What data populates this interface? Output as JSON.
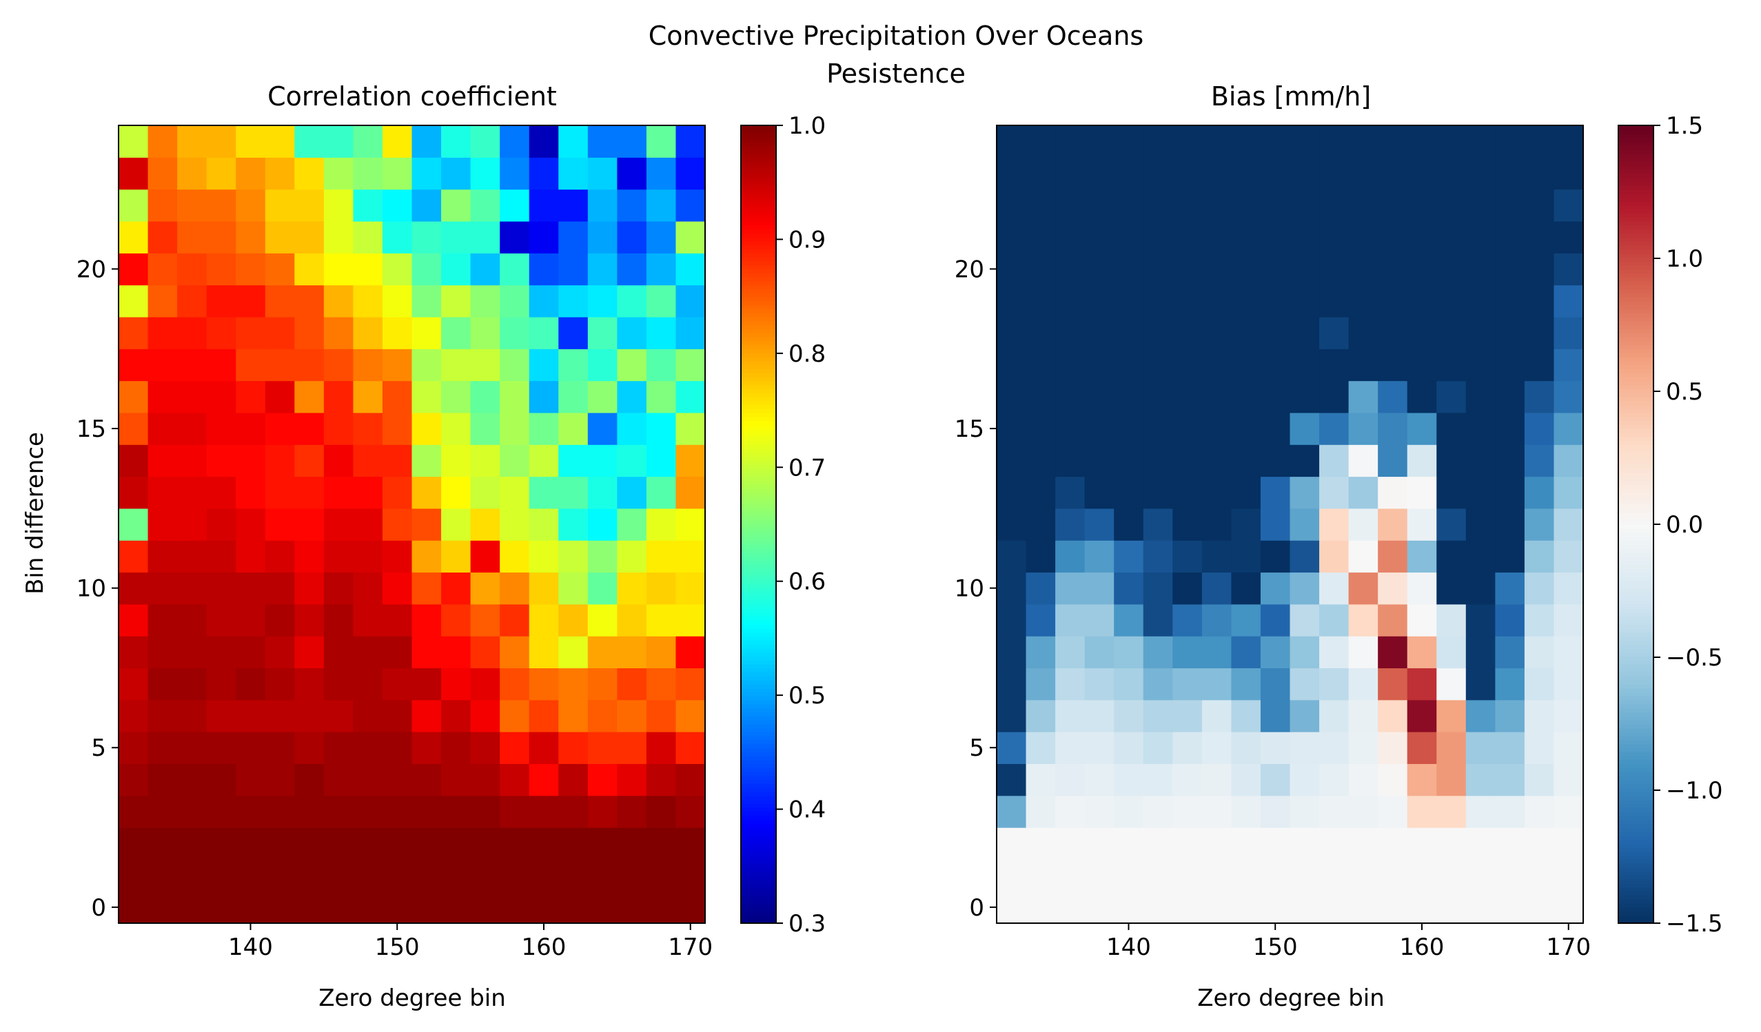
{
  "figure": {
    "suptitle_line1": "Convective Precipitation Over Oceans",
    "suptitle_line2": "Pesistence"
  },
  "chart_data": [
    {
      "type": "heatmap",
      "title": "Correlation coefficient",
      "xlabel": "Zero degree bin",
      "ylabel": "Bin difference",
      "colormap": "jet",
      "colorbar": {
        "min": 0.3,
        "max": 1.0,
        "ticks": [
          "0.3",
          "0.4",
          "0.5",
          "0.6",
          "0.7",
          "0.8",
          "0.9",
          "1.0"
        ]
      },
      "x_ticks": [
        "140",
        "150",
        "160",
        "170"
      ],
      "y_ticks": [
        "0",
        "5",
        "10",
        "15",
        "20"
      ],
      "x_range": [
        131,
        171
      ],
      "y_range": [
        -0.5,
        24.5
      ],
      "x_centers": [
        132,
        134,
        136,
        138,
        140,
        142,
        144,
        146,
        148,
        150,
        152,
        154,
        156,
        158,
        160,
        162,
        164,
        166,
        168,
        170
      ],
      "y_centers": [
        0,
        1,
        2,
        3,
        4,
        5,
        6,
        7,
        8,
        9,
        10,
        11,
        12,
        13,
        14,
        15,
        16,
        17,
        18,
        19,
        20,
        21,
        22,
        23,
        24
      ],
      "grid": false,
      "values": [
        [
          1.0,
          1.0,
          1.0,
          1.0,
          1.0,
          1.0,
          1.0,
          1.0,
          1.0,
          1.0,
          1.0,
          1.0,
          1.0,
          1.0,
          1.0,
          1.0,
          1.0,
          1.0,
          1.0,
          1.0
        ],
        [
          1.0,
          1.0,
          1.0,
          1.0,
          1.0,
          1.0,
          1.0,
          1.0,
          1.0,
          1.0,
          1.0,
          1.0,
          1.0,
          1.0,
          1.0,
          1.0,
          1.0,
          1.0,
          1.0,
          1.0
        ],
        [
          1.0,
          1.0,
          1.0,
          1.0,
          1.0,
          1.0,
          1.0,
          1.0,
          1.0,
          1.0,
          1.0,
          1.0,
          1.0,
          1.0,
          1.0,
          1.0,
          1.0,
          1.0,
          1.0,
          1.0
        ],
        [
          0.99,
          0.99,
          0.99,
          0.99,
          0.99,
          0.99,
          0.99,
          0.99,
          0.99,
          0.99,
          0.99,
          0.99,
          0.99,
          0.98,
          0.98,
          0.98,
          0.97,
          0.98,
          0.99,
          0.98
        ],
        [
          0.98,
          0.99,
          0.99,
          0.99,
          0.98,
          0.98,
          0.99,
          0.98,
          0.98,
          0.98,
          0.98,
          0.97,
          0.97,
          0.95,
          0.91,
          0.96,
          0.91,
          0.93,
          0.96,
          0.97
        ],
        [
          0.97,
          0.98,
          0.98,
          0.98,
          0.98,
          0.98,
          0.97,
          0.98,
          0.98,
          0.98,
          0.96,
          0.97,
          0.96,
          0.9,
          0.94,
          0.89,
          0.88,
          0.88,
          0.94,
          0.89
        ],
        [
          0.96,
          0.97,
          0.97,
          0.96,
          0.96,
          0.96,
          0.96,
          0.96,
          0.97,
          0.97,
          0.92,
          0.95,
          0.92,
          0.84,
          0.87,
          0.83,
          0.85,
          0.84,
          0.86,
          0.83
        ],
        [
          0.95,
          0.98,
          0.98,
          0.97,
          0.98,
          0.97,
          0.96,
          0.97,
          0.97,
          0.96,
          0.96,
          0.92,
          0.93,
          0.86,
          0.84,
          0.83,
          0.84,
          0.87,
          0.85,
          0.86
        ],
        [
          0.96,
          0.97,
          0.97,
          0.97,
          0.97,
          0.96,
          0.93,
          0.97,
          0.97,
          0.97,
          0.91,
          0.91,
          0.88,
          0.83,
          0.76,
          0.72,
          0.8,
          0.8,
          0.81,
          0.91
        ],
        [
          0.92,
          0.97,
          0.97,
          0.96,
          0.96,
          0.97,
          0.95,
          0.97,
          0.95,
          0.95,
          0.91,
          0.88,
          0.85,
          0.88,
          0.76,
          0.78,
          0.73,
          0.77,
          0.75,
          0.75
        ],
        [
          0.96,
          0.96,
          0.96,
          0.96,
          0.96,
          0.96,
          0.93,
          0.96,
          0.95,
          0.92,
          0.86,
          0.9,
          0.8,
          0.82,
          0.77,
          0.69,
          0.63,
          0.76,
          0.77,
          0.76
        ],
        [
          0.89,
          0.95,
          0.95,
          0.95,
          0.93,
          0.94,
          0.92,
          0.94,
          0.94,
          0.93,
          0.8,
          0.77,
          0.92,
          0.75,
          0.72,
          0.7,
          0.66,
          0.71,
          0.75,
          0.75
        ],
        [
          0.64,
          0.93,
          0.93,
          0.94,
          0.93,
          0.91,
          0.91,
          0.93,
          0.93,
          0.87,
          0.86,
          0.71,
          0.76,
          0.71,
          0.7,
          0.58,
          0.56,
          0.64,
          0.72,
          0.73
        ],
        [
          0.95,
          0.93,
          0.93,
          0.93,
          0.91,
          0.9,
          0.9,
          0.91,
          0.91,
          0.88,
          0.78,
          0.74,
          0.7,
          0.71,
          0.62,
          0.62,
          0.58,
          0.53,
          0.62,
          0.81
        ],
        [
          0.96,
          0.92,
          0.92,
          0.91,
          0.91,
          0.9,
          0.88,
          0.92,
          0.89,
          0.89,
          0.68,
          0.72,
          0.71,
          0.67,
          0.7,
          0.57,
          0.57,
          0.58,
          0.56,
          0.8
        ],
        [
          0.86,
          0.93,
          0.93,
          0.92,
          0.92,
          0.91,
          0.91,
          0.89,
          0.88,
          0.86,
          0.75,
          0.71,
          0.64,
          0.68,
          0.64,
          0.68,
          0.47,
          0.55,
          0.56,
          0.69
        ],
        [
          0.84,
          0.92,
          0.92,
          0.92,
          0.9,
          0.93,
          0.82,
          0.89,
          0.8,
          0.86,
          0.7,
          0.67,
          0.63,
          0.68,
          0.51,
          0.63,
          0.66,
          0.53,
          0.65,
          0.58
        ],
        [
          0.91,
          0.91,
          0.91,
          0.91,
          0.87,
          0.87,
          0.87,
          0.86,
          0.83,
          0.82,
          0.68,
          0.7,
          0.7,
          0.66,
          0.54,
          0.62,
          0.59,
          0.67,
          0.62,
          0.66
        ],
        [
          0.87,
          0.9,
          0.9,
          0.89,
          0.88,
          0.88,
          0.86,
          0.83,
          0.78,
          0.75,
          0.73,
          0.64,
          0.67,
          0.62,
          0.61,
          0.42,
          0.61,
          0.53,
          0.55,
          0.52
        ],
        [
          0.72,
          0.85,
          0.88,
          0.9,
          0.9,
          0.86,
          0.86,
          0.79,
          0.76,
          0.73,
          0.65,
          0.7,
          0.66,
          0.63,
          0.52,
          0.54,
          0.55,
          0.59,
          0.62,
          0.51
        ],
        [
          0.91,
          0.86,
          0.87,
          0.86,
          0.85,
          0.84,
          0.76,
          0.74,
          0.74,
          0.7,
          0.62,
          0.58,
          0.52,
          0.6,
          0.44,
          0.45,
          0.52,
          0.46,
          0.51,
          0.55
        ],
        [
          0.75,
          0.88,
          0.85,
          0.85,
          0.83,
          0.78,
          0.78,
          0.72,
          0.7,
          0.58,
          0.6,
          0.59,
          0.59,
          0.36,
          0.38,
          0.45,
          0.5,
          0.43,
          0.48,
          0.68
        ],
        [
          0.69,
          0.85,
          0.84,
          0.84,
          0.82,
          0.77,
          0.77,
          0.72,
          0.58,
          0.56,
          0.51,
          0.66,
          0.62,
          0.56,
          0.4,
          0.4,
          0.51,
          0.46,
          0.51,
          0.44
        ],
        [
          0.94,
          0.84,
          0.8,
          0.78,
          0.81,
          0.79,
          0.76,
          0.68,
          0.66,
          0.67,
          0.54,
          0.52,
          0.57,
          0.48,
          0.41,
          0.54,
          0.53,
          0.37,
          0.48,
          0.4
        ],
        [
          0.7,
          0.83,
          0.79,
          0.79,
          0.76,
          0.76,
          0.6,
          0.6,
          0.63,
          0.75,
          0.51,
          0.58,
          0.6,
          0.47,
          0.34,
          0.55,
          0.47,
          0.47,
          0.63,
          0.42
        ]
      ]
    },
    {
      "type": "heatmap",
      "title": "Bias [mm/h]",
      "xlabel": "Zero degree bin",
      "ylabel": "",
      "colormap": "RdBu_r",
      "colorbar": {
        "min": -1.5,
        "max": 1.5,
        "ticks": [
          "−1.5",
          "−1.0",
          "−0.5",
          "0.0",
          "0.5",
          "1.0",
          "1.5"
        ]
      },
      "x_ticks": [
        "140",
        "150",
        "160",
        "170"
      ],
      "y_ticks": [
        "0",
        "5",
        "10",
        "15",
        "20"
      ],
      "x_range": [
        131,
        171
      ],
      "y_range": [
        -0.5,
        24.5
      ],
      "x_centers": [
        132,
        134,
        136,
        138,
        140,
        142,
        144,
        146,
        148,
        150,
        152,
        154,
        156,
        158,
        160,
        162,
        164,
        166,
        168,
        170
      ],
      "y_centers": [
        0,
        1,
        2,
        3,
        4,
        5,
        6,
        7,
        8,
        9,
        10,
        11,
        12,
        13,
        14,
        15,
        16,
        17,
        18,
        19,
        20,
        21,
        22,
        23,
        24
      ],
      "grid": false,
      "values": [
        [
          0.0,
          0.0,
          0.0,
          0.0,
          0.0,
          0.0,
          0.0,
          0.0,
          0.0,
          0.0,
          0.0,
          0.0,
          0.0,
          0.0,
          0.0,
          0.0,
          0.0,
          0.0,
          0.0,
          0.0
        ],
        [
          0.0,
          0.0,
          0.0,
          0.0,
          0.0,
          0.0,
          0.0,
          0.0,
          0.0,
          0.0,
          0.0,
          0.0,
          0.0,
          0.0,
          0.0,
          0.0,
          0.0,
          0.0,
          0.0,
          0.0
        ],
        [
          0.0,
          0.0,
          0.0,
          0.0,
          0.0,
          0.0,
          0.0,
          0.0,
          0.0,
          0.0,
          0.0,
          0.0,
          0.0,
          0.0,
          0.0,
          0.0,
          0.0,
          0.0,
          0.0,
          0.0
        ],
        [
          -0.75,
          -0.12,
          -0.06,
          -0.08,
          -0.1,
          -0.08,
          -0.06,
          -0.06,
          -0.1,
          -0.16,
          -0.1,
          -0.08,
          -0.08,
          -0.05,
          0.3,
          0.3,
          -0.14,
          -0.14,
          -0.06,
          -0.04
        ],
        [
          -1.45,
          -0.14,
          -0.16,
          -0.14,
          -0.18,
          -0.18,
          -0.14,
          -0.12,
          -0.22,
          -0.4,
          -0.18,
          -0.14,
          -0.06,
          0.02,
          0.55,
          0.65,
          -0.5,
          -0.5,
          -0.25,
          -0.1
        ],
        [
          -1.15,
          -0.35,
          -0.2,
          -0.2,
          -0.28,
          -0.35,
          -0.25,
          -0.18,
          -0.28,
          -0.22,
          -0.2,
          -0.2,
          -0.1,
          0.1,
          0.95,
          0.65,
          -0.55,
          -0.55,
          -0.2,
          -0.1
        ],
        [
          -1.45,
          -0.55,
          -0.3,
          -0.3,
          -0.38,
          -0.45,
          -0.45,
          -0.25,
          -0.45,
          -1.0,
          -0.7,
          -0.25,
          -0.12,
          0.3,
          1.35,
          0.6,
          -0.85,
          -0.75,
          -0.2,
          -0.15
        ],
        [
          -1.45,
          -0.75,
          -0.4,
          -0.45,
          -0.5,
          -0.7,
          -0.65,
          -0.65,
          -0.8,
          -1.0,
          -0.45,
          -0.4,
          -0.18,
          0.9,
          1.1,
          -0.02,
          -1.45,
          -0.9,
          -0.3,
          -0.18
        ],
        [
          -1.45,
          -0.8,
          -0.5,
          -0.62,
          -0.6,
          -0.8,
          -0.9,
          -0.9,
          -1.15,
          -0.85,
          -0.6,
          -0.2,
          -0.02,
          1.4,
          0.55,
          -0.3,
          -1.45,
          -1.05,
          -0.25,
          -0.18
        ],
        [
          -1.45,
          -1.2,
          -0.55,
          -0.55,
          -0.88,
          -1.35,
          -1.15,
          -1.0,
          -0.9,
          -1.2,
          -0.4,
          -0.5,
          0.3,
          0.7,
          0.0,
          -0.28,
          -1.45,
          -1.2,
          -0.35,
          -0.22
        ],
        [
          -1.45,
          -1.25,
          -0.7,
          -0.7,
          -1.25,
          -1.35,
          -1.5,
          -1.3,
          -1.5,
          -0.85,
          -0.7,
          -0.2,
          0.75,
          0.2,
          -0.05,
          -1.5,
          -1.5,
          -1.1,
          -0.45,
          -0.3
        ],
        [
          -1.45,
          -1.5,
          -0.95,
          -0.85,
          -1.15,
          -1.3,
          -1.4,
          -1.45,
          -1.45,
          -1.5,
          -1.3,
          0.35,
          0.0,
          0.75,
          -0.65,
          -1.5,
          -1.5,
          -1.5,
          -0.6,
          -0.4
        ],
        [
          -1.5,
          -1.5,
          -1.3,
          -1.25,
          -1.5,
          -1.35,
          -1.5,
          -1.5,
          -1.45,
          -1.2,
          -0.8,
          0.3,
          -0.12,
          0.45,
          -0.1,
          -1.35,
          -1.5,
          -1.5,
          -0.8,
          -0.45
        ],
        [
          -1.5,
          -1.5,
          -1.4,
          -1.5,
          -1.5,
          -1.5,
          -1.5,
          -1.5,
          -1.5,
          -1.2,
          -0.75,
          -0.4,
          -0.55,
          0.02,
          0.0,
          -1.5,
          -1.5,
          -1.5,
          -0.95,
          -0.6
        ],
        [
          -1.5,
          -1.5,
          -1.5,
          -1.5,
          -1.5,
          -1.5,
          -1.5,
          -1.5,
          -1.5,
          -1.5,
          -1.5,
          -0.45,
          -0.02,
          -1.0,
          -0.25,
          -1.5,
          -1.5,
          -1.5,
          -1.15,
          -0.65
        ],
        [
          -1.5,
          -1.5,
          -1.5,
          -1.5,
          -1.5,
          -1.5,
          -1.5,
          -1.5,
          -1.5,
          -1.5,
          -0.95,
          -1.1,
          -0.85,
          -1.0,
          -0.9,
          -1.5,
          -1.5,
          -1.5,
          -1.2,
          -0.85
        ],
        [
          -1.5,
          -1.5,
          -1.5,
          -1.5,
          -1.5,
          -1.5,
          -1.5,
          -1.5,
          -1.5,
          -1.5,
          -1.5,
          -1.5,
          -0.8,
          -1.15,
          -1.5,
          -1.4,
          -1.5,
          -1.5,
          -1.3,
          -1.1
        ],
        [
          -1.5,
          -1.5,
          -1.5,
          -1.5,
          -1.5,
          -1.5,
          -1.5,
          -1.5,
          -1.5,
          -1.5,
          -1.5,
          -1.5,
          -1.5,
          -1.5,
          -1.5,
          -1.5,
          -1.5,
          -1.5,
          -1.5,
          -1.15
        ],
        [
          -1.5,
          -1.5,
          -1.5,
          -1.5,
          -1.5,
          -1.5,
          -1.5,
          -1.5,
          -1.5,
          -1.5,
          -1.5,
          -1.4,
          -1.5,
          -1.5,
          -1.5,
          -1.5,
          -1.5,
          -1.5,
          -1.5,
          -1.25
        ],
        [
          -1.5,
          -1.5,
          -1.5,
          -1.5,
          -1.5,
          -1.5,
          -1.5,
          -1.5,
          -1.5,
          -1.5,
          -1.5,
          -1.5,
          -1.5,
          -1.5,
          -1.5,
          -1.5,
          -1.5,
          -1.5,
          -1.5,
          -1.2
        ],
        [
          -1.5,
          -1.5,
          -1.5,
          -1.5,
          -1.5,
          -1.5,
          -1.5,
          -1.5,
          -1.5,
          -1.5,
          -1.5,
          -1.5,
          -1.5,
          -1.5,
          -1.5,
          -1.5,
          -1.5,
          -1.5,
          -1.5,
          -1.4
        ],
        [
          -1.5,
          -1.5,
          -1.5,
          -1.5,
          -1.5,
          -1.5,
          -1.5,
          -1.5,
          -1.5,
          -1.5,
          -1.5,
          -1.5,
          -1.5,
          -1.5,
          -1.5,
          -1.5,
          -1.5,
          -1.5,
          -1.5,
          -1.5
        ],
        [
          -1.5,
          -1.5,
          -1.5,
          -1.5,
          -1.5,
          -1.5,
          -1.5,
          -1.5,
          -1.5,
          -1.5,
          -1.5,
          -1.5,
          -1.5,
          -1.5,
          -1.5,
          -1.5,
          -1.5,
          -1.5,
          -1.5,
          -1.4
        ],
        [
          -1.5,
          -1.5,
          -1.5,
          -1.5,
          -1.5,
          -1.5,
          -1.5,
          -1.5,
          -1.5,
          -1.5,
          -1.5,
          -1.5,
          -1.5,
          -1.5,
          -1.5,
          -1.5,
          -1.5,
          -1.5,
          -1.5,
          -1.5
        ],
        [
          -1.5,
          -1.5,
          -1.5,
          -1.5,
          -1.5,
          -1.5,
          -1.5,
          -1.5,
          -1.5,
          -1.5,
          -1.5,
          -1.5,
          -1.5,
          -1.5,
          -1.5,
          -1.5,
          -1.5,
          -1.5,
          -1.5,
          -1.5
        ]
      ]
    }
  ]
}
